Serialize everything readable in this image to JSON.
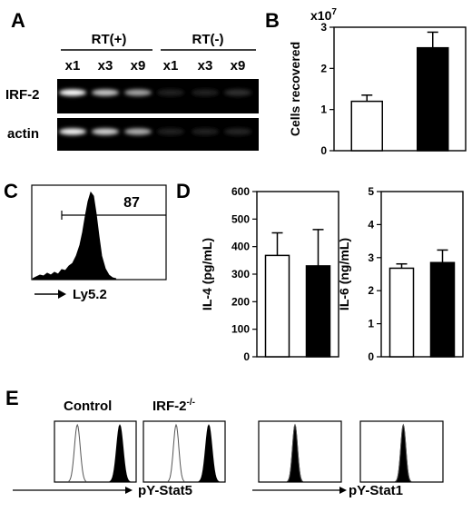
{
  "panel_labels": {
    "a": "A",
    "b": "B",
    "c": "C",
    "d": "D",
    "e": "E"
  },
  "gel": {
    "groups": [
      "RT(+)",
      "RT(-)"
    ],
    "lanes": [
      "x1",
      "x3",
      "x9",
      "x1",
      "x3",
      "x9"
    ],
    "rows": [
      "IRF-2",
      "actin"
    ],
    "band_intensity": {
      "IRF-2": [
        1.0,
        0.75,
        0.6,
        0.02,
        0.02,
        0.08
      ],
      "actin": [
        0.95,
        0.8,
        0.65,
        0.02,
        0.02,
        0.04
      ]
    }
  },
  "flow_c": {
    "gate_value": "87",
    "xlabel": "Ly5.2"
  },
  "panel_e": {
    "conditions": [
      "Control",
      "IRF-2"
    ],
    "irf2_superscript": "-/-",
    "xlabels": [
      "pY-Stat5",
      "pY-Stat1"
    ]
  },
  "chart_data": [
    {
      "type": "bar",
      "panel": "B",
      "categories": [
        "",
        ""
      ],
      "values": [
        1.2,
        2.5
      ],
      "errors": [
        0.15,
        0.38
      ],
      "fill": [
        "#ffffff",
        "#000000"
      ],
      "ylabel": "Cells recovered",
      "multiplier": "x10",
      "multiplier_exp": "7",
      "ylim": [
        0,
        3
      ],
      "ticks": [
        "0",
        "1",
        "2",
        "3"
      ]
    },
    {
      "type": "bar",
      "panel": "D",
      "categories": [
        "",
        ""
      ],
      "values": [
        368,
        330
      ],
      "errors": [
        82,
        132
      ],
      "fill": [
        "#ffffff",
        "#000000"
      ],
      "ylabel": "IL-4 (pg/mL)",
      "ylim": [
        0,
        600
      ],
      "ticks": [
        "0",
        "100",
        "200",
        "300",
        "400",
        "500",
        "600"
      ]
    },
    {
      "type": "bar",
      "panel": "D",
      "categories": [
        "",
        ""
      ],
      "values": [
        2.68,
        2.85
      ],
      "errors": [
        0.13,
        0.38
      ],
      "fill": [
        "#ffffff",
        "#000000"
      ],
      "ylabel": "IL-6 (ng/mL)",
      "ylim": [
        0,
        5
      ],
      "ticks": [
        "0",
        "1",
        "2",
        "3",
        "4",
        "5"
      ]
    }
  ]
}
